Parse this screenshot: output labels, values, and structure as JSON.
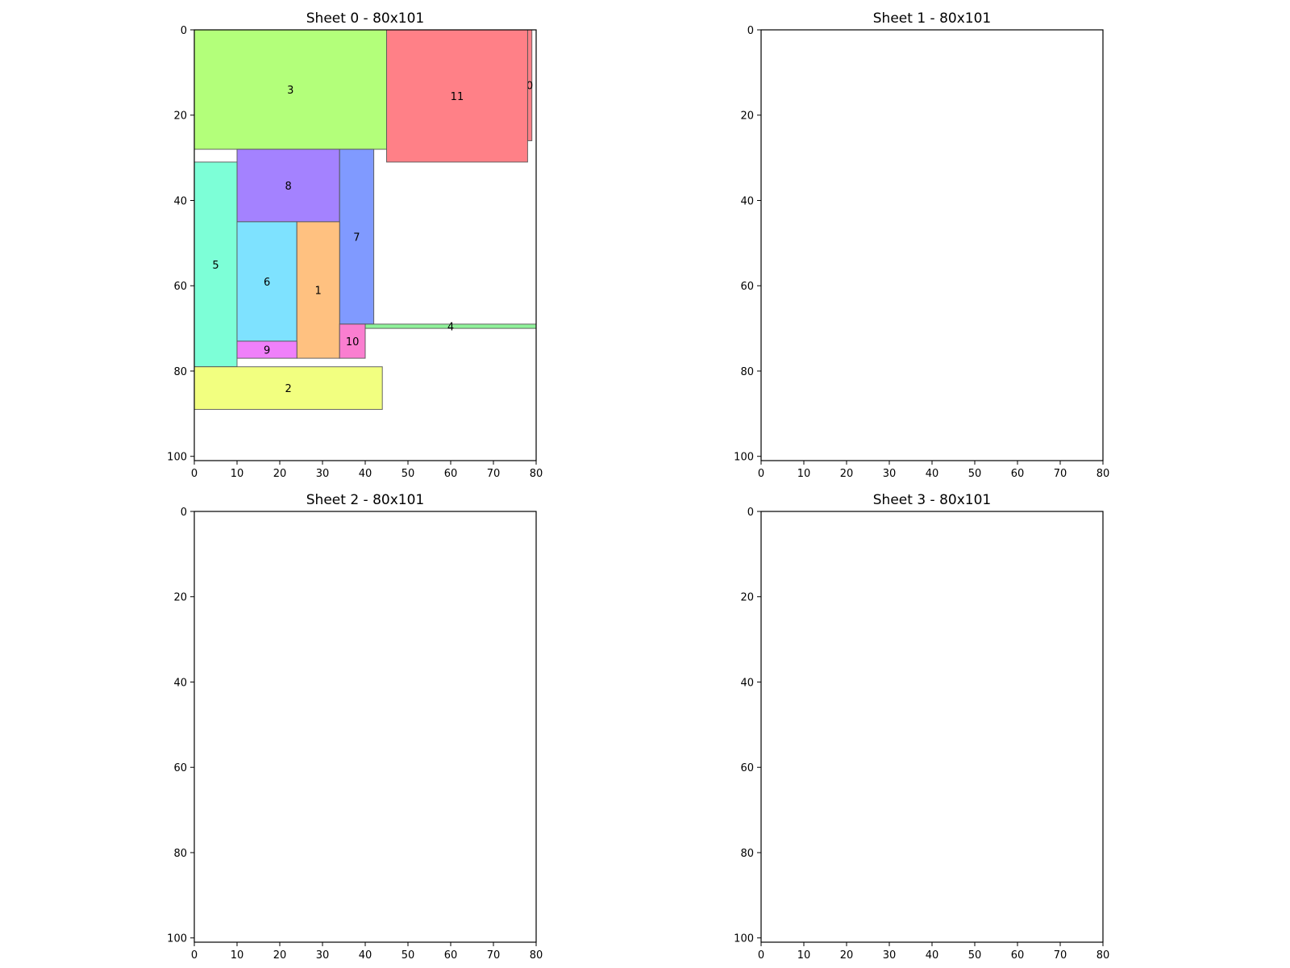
{
  "figure": {
    "background": "#ffffff"
  },
  "chart_data": [
    {
      "type": "rect-packing",
      "title": "Sheet 0 - 80x101",
      "xlim": [
        0,
        80
      ],
      "ylim": [
        0,
        101
      ],
      "y_inverted": true,
      "grid": false,
      "xticks": [
        "0",
        "10",
        "20",
        "30",
        "40",
        "50",
        "60",
        "70",
        "80"
      ],
      "yticks": [
        "0",
        "20",
        "40",
        "60",
        "80",
        "100"
      ],
      "items": [
        {
          "id": "0",
          "x": 78,
          "y": 0,
          "w": 1,
          "h": 26,
          "color": "#ff8087"
        },
        {
          "id": "11",
          "x": 45,
          "y": 0,
          "w": 33,
          "h": 31,
          "color": "#ff8087"
        },
        {
          "id": "3",
          "x": 0,
          "y": 0,
          "w": 45,
          "h": 28,
          "color": "#b3ff7a"
        },
        {
          "id": "8",
          "x": 10,
          "y": 28,
          "w": 24,
          "h": 17,
          "color": "#a482ff"
        },
        {
          "id": "7",
          "x": 34,
          "y": 28,
          "w": 8,
          "h": 41,
          "color": "#809aff"
        },
        {
          "id": "5",
          "x": 0,
          "y": 31,
          "w": 10,
          "h": 48,
          "color": "#7dffd7"
        },
        {
          "id": "6",
          "x": 10,
          "y": 45,
          "w": 14,
          "h": 28,
          "color": "#7ee2ff"
        },
        {
          "id": "1",
          "x": 24,
          "y": 45,
          "w": 10,
          "h": 32,
          "color": "#ffc180"
        },
        {
          "id": "4",
          "x": 40,
          "y": 69,
          "w": 40,
          "h": 1,
          "color": "#8ff29a"
        },
        {
          "id": "10",
          "x": 34,
          "y": 69,
          "w": 6,
          "h": 8,
          "color": "#fa7ed0"
        },
        {
          "id": "9",
          "x": 10,
          "y": 73,
          "w": 14,
          "h": 4,
          "color": "#ef80fa"
        },
        {
          "id": "2",
          "x": 0,
          "y": 79,
          "w": 44,
          "h": 10,
          "color": "#f2ff80"
        }
      ]
    },
    {
      "type": "rect-packing",
      "title": "Sheet 1 - 80x101",
      "xlim": [
        0,
        80
      ],
      "ylim": [
        0,
        101
      ],
      "y_inverted": true,
      "grid": false,
      "xticks": [
        "0",
        "10",
        "20",
        "30",
        "40",
        "50",
        "60",
        "70",
        "80"
      ],
      "yticks": [
        "0",
        "20",
        "40",
        "60",
        "80",
        "100"
      ],
      "items": []
    },
    {
      "type": "rect-packing",
      "title": "Sheet 2 - 80x101",
      "xlim": [
        0,
        80
      ],
      "ylim": [
        0,
        101
      ],
      "y_inverted": true,
      "grid": false,
      "xticks": [
        "0",
        "10",
        "20",
        "30",
        "40",
        "50",
        "60",
        "70",
        "80"
      ],
      "yticks": [
        "0",
        "20",
        "40",
        "60",
        "80",
        "100"
      ],
      "items": []
    },
    {
      "type": "rect-packing",
      "title": "Sheet 3 - 80x101",
      "xlim": [
        0,
        80
      ],
      "ylim": [
        0,
        101
      ],
      "y_inverted": true,
      "grid": false,
      "xticks": [
        "0",
        "10",
        "20",
        "30",
        "40",
        "50",
        "60",
        "70",
        "80"
      ],
      "yticks": [
        "0",
        "20",
        "40",
        "60",
        "80",
        "100"
      ],
      "items": []
    }
  ]
}
